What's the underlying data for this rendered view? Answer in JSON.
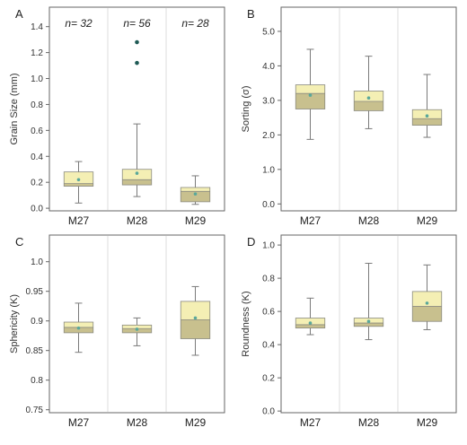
{
  "colors": {
    "box_upper": "#f4efb4",
    "box_lower": "#c8c08e",
    "box_stroke": "#8a8a80",
    "whisker": "#7a7a7a",
    "mean_marker": "#5aa89a",
    "outlier": "#1f5a55",
    "panel_border": "#666666",
    "divider": "#dddddd"
  },
  "chart_data": [
    {
      "type": "box",
      "panel_label": "A",
      "ylabel": "Grain Size (mm)",
      "categories": [
        "M27",
        "M28",
        "M29"
      ],
      "sample_sizes": [
        "n= 32",
        "n= 56",
        "n= 28"
      ],
      "ylim": [
        -0.02,
        1.55
      ],
      "yticks": [
        0.0,
        0.2,
        0.4,
        0.6,
        0.8,
        1.0,
        1.2,
        1.4
      ],
      "ytick_labels": [
        "0.0",
        "0.2",
        "0.4",
        "0.6",
        "0.8",
        "1.0",
        "1.2",
        "1.4"
      ],
      "boxes": [
        {
          "min": 0.04,
          "q1": 0.17,
          "median": 0.19,
          "q3": 0.28,
          "max": 0.36,
          "mean": 0.22,
          "outliers": []
        },
        {
          "min": 0.09,
          "q1": 0.18,
          "median": 0.22,
          "q3": 0.3,
          "max": 0.65,
          "mean": 0.27,
          "outliers": [
            1.28,
            1.12
          ]
        },
        {
          "min": 0.03,
          "q1": 0.05,
          "median": 0.13,
          "q3": 0.16,
          "max": 0.25,
          "mean": 0.11,
          "outliers": []
        }
      ]
    },
    {
      "type": "box",
      "panel_label": "B",
      "ylabel": "Sorting (σ)",
      "categories": [
        "M27",
        "M28",
        "M29"
      ],
      "sample_sizes": [],
      "ylim": [
        -0.2,
        5.7
      ],
      "yticks": [
        0,
        1,
        2,
        3,
        4,
        5
      ],
      "ytick_labels": [
        "0.0",
        "1.0",
        "2.0",
        "3.0",
        "4.0",
        "5.0"
      ],
      "boxes": [
        {
          "min": 1.87,
          "q1": 2.75,
          "median": 3.2,
          "q3": 3.45,
          "max": 4.48,
          "mean": 3.15,
          "outliers": []
        },
        {
          "min": 2.18,
          "q1": 2.7,
          "median": 2.97,
          "q3": 3.27,
          "max": 4.28,
          "mean": 3.07,
          "outliers": []
        },
        {
          "min": 1.93,
          "q1": 2.28,
          "median": 2.47,
          "q3": 2.73,
          "max": 3.75,
          "mean": 2.55,
          "outliers": []
        }
      ]
    },
    {
      "type": "box",
      "panel_label": "C",
      "ylabel": "Sphericity (K)",
      "categories": [
        "M27",
        "M28",
        "M29"
      ],
      "sample_sizes": [],
      "ylim": [
        0.745,
        1.045
      ],
      "yticks": [
        0.75,
        0.8,
        0.85,
        0.9,
        0.95,
        1.0
      ],
      "ytick_labels": [
        "0.75",
        "0.8",
        "0.85",
        "0.9",
        "0.95",
        "1.0"
      ],
      "boxes": [
        {
          "min": 0.847,
          "q1": 0.88,
          "median": 0.889,
          "q3": 0.898,
          "max": 0.93,
          "mean": 0.888,
          "outliers": []
        },
        {
          "min": 0.858,
          "q1": 0.88,
          "median": 0.887,
          "q3": 0.893,
          "max": 0.905,
          "mean": 0.886,
          "outliers": []
        },
        {
          "min": 0.842,
          "q1": 0.87,
          "median": 0.902,
          "q3": 0.933,
          "max": 0.958,
          "mean": 0.905,
          "outliers": []
        }
      ]
    },
    {
      "type": "box",
      "panel_label": "D",
      "ylabel": "Roundness (K)",
      "categories": [
        "M27",
        "M28",
        "M29"
      ],
      "sample_sizes": [],
      "ylim": [
        -0.01,
        1.06
      ],
      "yticks": [
        0.0,
        0.2,
        0.4,
        0.6,
        0.8,
        1.0
      ],
      "ytick_labels": [
        "0.0",
        "0.2",
        "0.4",
        "0.6",
        "0.8",
        "1.0"
      ],
      "boxes": [
        {
          "min": 0.46,
          "q1": 0.5,
          "median": 0.52,
          "q3": 0.56,
          "max": 0.68,
          "mean": 0.53,
          "outliers": []
        },
        {
          "min": 0.43,
          "q1": 0.51,
          "median": 0.53,
          "q3": 0.56,
          "max": 0.89,
          "mean": 0.54,
          "outliers": []
        },
        {
          "min": 0.49,
          "q1": 0.54,
          "median": 0.63,
          "q3": 0.72,
          "max": 0.88,
          "mean": 0.65,
          "outliers": []
        }
      ]
    }
  ]
}
